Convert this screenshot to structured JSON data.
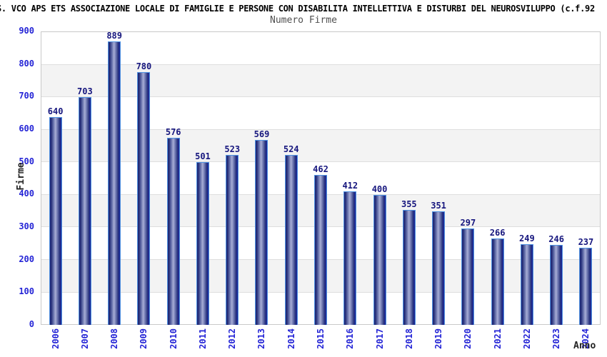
{
  "title": "S. VCO APS ETS ASSOCIAZIONE LOCALE DI FAMIGLIE E PERSONE CON DISABILITA INTELLETTIVA E DISTURBI DEL NEUROSVILUPPO (c.f.92",
  "subtitle": "Numero Firme",
  "chart_data": {
    "type": "bar",
    "title": "Numero Firme",
    "xlabel": "Anno",
    "ylabel": "Firme",
    "categories": [
      "2006",
      "2007",
      "2008",
      "2009",
      "2010",
      "2011",
      "2012",
      "2013",
      "2014",
      "2015",
      "2016",
      "2017",
      "2018",
      "2019",
      "2020",
      "2021",
      "2022",
      "2023",
      "2024"
    ],
    "values": [
      640,
      703,
      889,
      780,
      576,
      501,
      523,
      569,
      524,
      462,
      412,
      400,
      355,
      351,
      297,
      266,
      249,
      246,
      237
    ],
    "ylim": [
      0,
      900
    ],
    "yticks": [
      0,
      100,
      200,
      300,
      400,
      500,
      600,
      700,
      800,
      900
    ],
    "grid": true,
    "band_fill_alternating": true,
    "legend": "none",
    "bar_labels_visible": true
  },
  "colors": {
    "title_color": "#000000",
    "subtitle_color": "#4f4f4f",
    "tick_color": "#2424d6",
    "value_label_color": "#16167e",
    "axis_title_color": "#222222",
    "frame_color": "#c9c9c9",
    "grid_color": "#dedede",
    "band_gray": "#f3f3f3",
    "bar_border": "#4f92e2",
    "bar_dark": "#242d7c",
    "bar_light": "#a7aed6",
    "bar_stripe": "#2230b4"
  }
}
